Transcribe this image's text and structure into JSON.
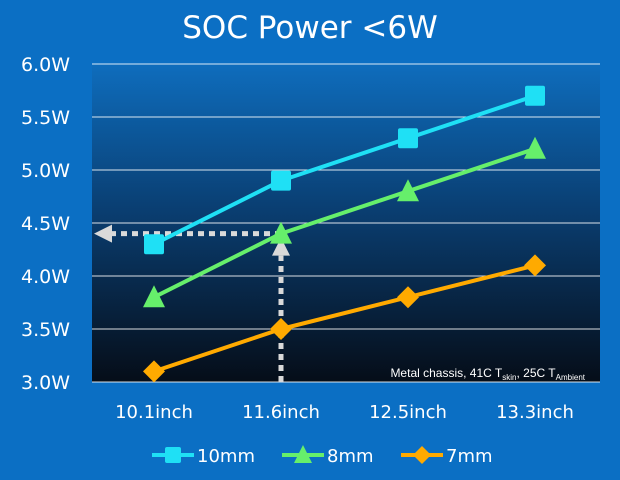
{
  "colors": {
    "background": "#0b6fc4",
    "plot_top": "#0e6dbd",
    "plot_bottom": "#050d18",
    "gridline": "#ffffff",
    "text": "#ffffff",
    "arrow": "#d9d9d9"
  },
  "chart_data": {
    "type": "line",
    "title": "SOC Power <6W",
    "xlabel": "",
    "ylabel": "",
    "categories": [
      "10.1inch",
      "11.6inch",
      "12.5inch",
      "13.3inch"
    ],
    "ylim": [
      3.0,
      6.0
    ],
    "yticks": [
      3.0,
      3.5,
      4.0,
      4.5,
      5.0,
      5.5,
      6.0
    ],
    "ytick_labels": [
      "3.0W",
      "3.5W",
      "4.0W",
      "4.5W",
      "5.0W",
      "5.5W",
      "6.0W"
    ],
    "grid": true,
    "legend_position": "bottom",
    "series": [
      {
        "name": "10mm",
        "values": [
          4.3,
          4.9,
          5.3,
          5.7
        ],
        "color": "#1fe0f5",
        "marker": "square"
      },
      {
        "name": "8mm",
        "values": [
          3.8,
          4.4,
          4.8,
          5.2
        ],
        "color": "#66ef6b",
        "marker": "triangle"
      },
      {
        "name": "7mm",
        "values": [
          3.1,
          3.5,
          3.8,
          4.1
        ],
        "color": "#ffaa00",
        "marker": "diamond"
      }
    ],
    "annotation": {
      "text_a": "Metal chassis, 41C T",
      "sub_a": "skin",
      "text_b": ", 25C T",
      "sub_b": "Ambient"
    },
    "guide_arrows": {
      "x_category": "11.6inch",
      "y_value": 4.4
    }
  }
}
